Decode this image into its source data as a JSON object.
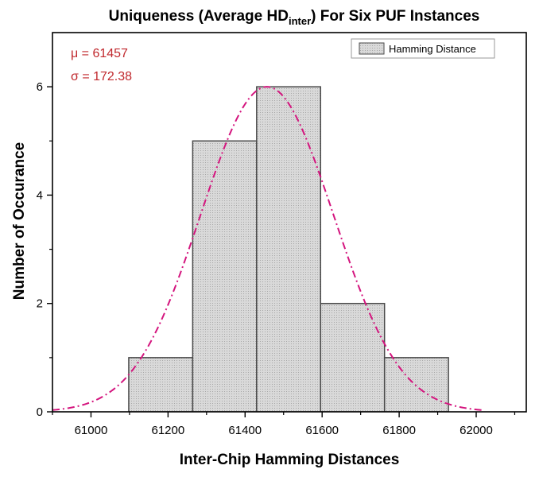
{
  "chart_data": {
    "type": "bar",
    "title": {
      "main": "Uniqueness (Average HD",
      "subscript": "inter",
      "rest": ") For Six PUF Instances"
    },
    "xlabel": "Inter-Chip Hamming Distances",
    "ylabel": "Number of Occurance",
    "xlim": [
      60900,
      62130
    ],
    "ylim": [
      0,
      7
    ],
    "x_ticks": [
      61000,
      61200,
      61400,
      61600,
      61800,
      62000
    ],
    "y_ticks": [
      0,
      2,
      4,
      6
    ],
    "bins": [
      {
        "start": 61098,
        "end": 61264,
        "count": 1
      },
      {
        "start": 61264,
        "end": 61430,
        "count": 5
      },
      {
        "start": 61430,
        "end": 61596,
        "count": 6
      },
      {
        "start": 61596,
        "end": 61762,
        "count": 2
      },
      {
        "start": 61762,
        "end": 61928,
        "count": 1
      }
    ],
    "fit_curve": {
      "type": "normal",
      "mean": 61457,
      "sigma": 172.38,
      "peak": 6.0,
      "x_range": [
        60900,
        62020
      ],
      "color": "#d4157e",
      "style": "dash-dot"
    },
    "annotations": {
      "mu": "μ = 61457",
      "sigma": "σ = 172.38",
      "color": "#c0282d"
    },
    "legend": {
      "label": "Hamming Distance",
      "placement": "top-right"
    },
    "bar_fill": "#d6d6d6",
    "bar_stroke": "#4a4a4a",
    "grid": false
  }
}
